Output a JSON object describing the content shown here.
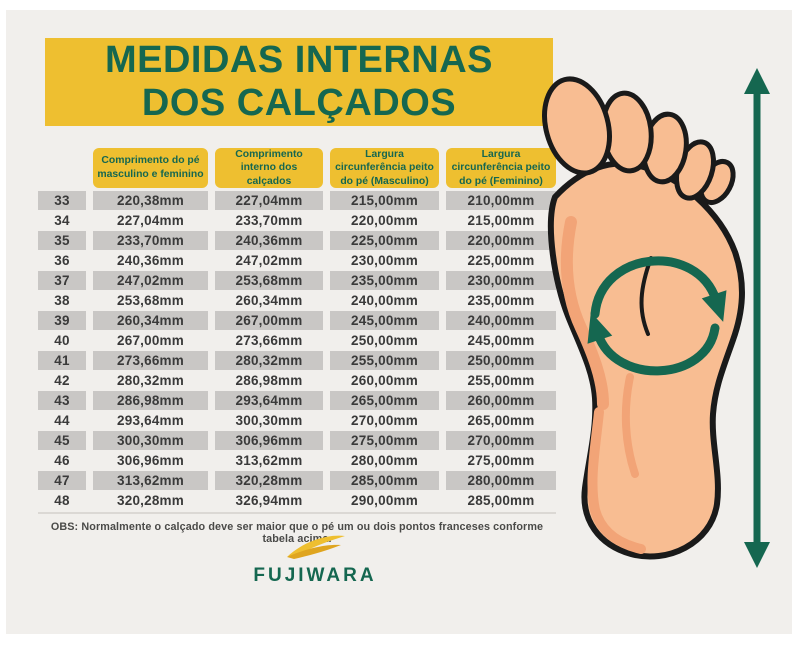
{
  "page": {
    "title": {
      "line1": "MEDIDAS INTERNAS",
      "line2": "DOS CALÇADOS"
    },
    "note": "OBS: Normalmente o calçado deve ser maior que o pé um ou dois pontos franceses conforme tabela acima.",
    "brand": "FUJIWARA"
  },
  "colors": {
    "yellow": "#EEBF30",
    "green": "#156750",
    "row-gray": "#C9C7C5",
    "text-dark": "#3A3A3A",
    "bg": "#F1EFEC",
    "skin": "#F8BD92",
    "skin-shade": "#F2A477",
    "outline": "#1A1A1A",
    "note-gray": "#4A4A48",
    "divider": "#DBD8D4"
  },
  "icons": {
    "foot": "foot-sole-illustration",
    "rotate_arrows": "circular-rotate-arrows-icon (girth measurement)",
    "length_arrow": "vertical-double-arrow-icon (length measurement)",
    "wing": "fujiwara-wing-logo-icon"
  },
  "table": {
    "headers": [
      "Comprimento do pé masculino e feminino",
      "Comprimento interno dos calçados",
      "Largura circunferência peito do pé (Masculino)",
      "Largura circunferência peito do pé (Feminino)"
    ],
    "rows": [
      {
        "size": "33",
        "values": [
          "220,38mm",
          "227,04mm",
          "215,00mm",
          "210,00mm"
        ]
      },
      {
        "size": "34",
        "values": [
          "227,04mm",
          "233,70mm",
          "220,00mm",
          "215,00mm"
        ]
      },
      {
        "size": "35",
        "values": [
          "233,70mm",
          "240,36mm",
          "225,00mm",
          "220,00mm"
        ]
      },
      {
        "size": "36",
        "values": [
          "240,36mm",
          "247,02mm",
          "230,00mm",
          "225,00mm"
        ]
      },
      {
        "size": "37",
        "values": [
          "247,02mm",
          "253,68mm",
          "235,00mm",
          "230,00mm"
        ]
      },
      {
        "size": "38",
        "values": [
          "253,68mm",
          "260,34mm",
          "240,00mm",
          "235,00mm"
        ]
      },
      {
        "size": "39",
        "values": [
          "260,34mm",
          "267,00mm",
          "245,00mm",
          "240,00mm"
        ]
      },
      {
        "size": "40",
        "values": [
          "267,00mm",
          "273,66mm",
          "250,00mm",
          "245,00mm"
        ]
      },
      {
        "size": "41",
        "values": [
          "273,66mm",
          "280,32mm",
          "255,00mm",
          "250,00mm"
        ]
      },
      {
        "size": "42",
        "values": [
          "280,32mm",
          "286,98mm",
          "260,00mm",
          "255,00mm"
        ]
      },
      {
        "size": "43",
        "values": [
          "286,98mm",
          "293,64mm",
          "265,00mm",
          "260,00mm"
        ]
      },
      {
        "size": "44",
        "values": [
          "293,64mm",
          "300,30mm",
          "270,00mm",
          "265,00mm"
        ]
      },
      {
        "size": "45",
        "values": [
          "300,30mm",
          "306,96mm",
          "275,00mm",
          "270,00mm"
        ]
      },
      {
        "size": "46",
        "values": [
          "306,96mm",
          "313,62mm",
          "280,00mm",
          "275,00mm"
        ]
      },
      {
        "size": "47",
        "values": [
          "313,62mm",
          "320,28mm",
          "285,00mm",
          "280,00mm"
        ]
      },
      {
        "size": "48",
        "values": [
          "320,28mm",
          "326,94mm",
          "290,00mm",
          "285,00mm"
        ]
      }
    ]
  }
}
